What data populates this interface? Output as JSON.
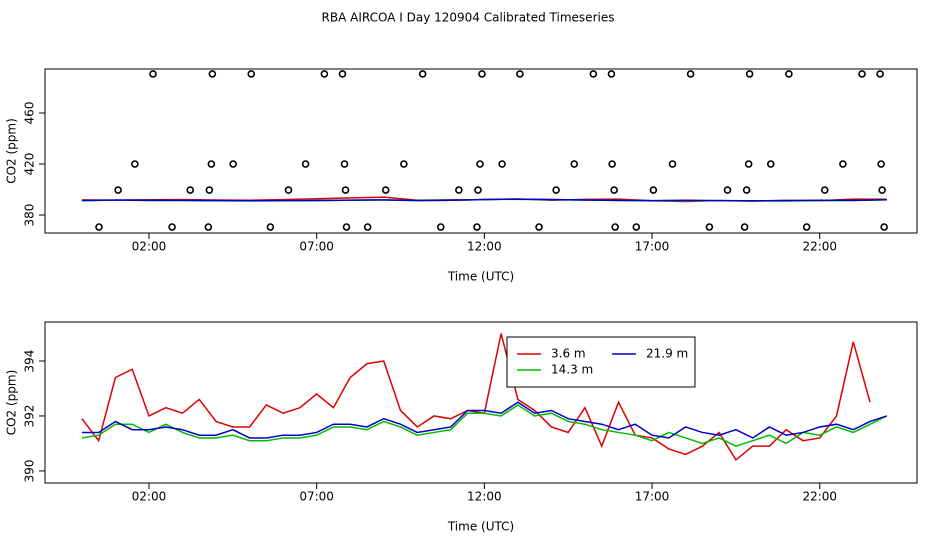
{
  "title": "RBA AIRCOA I  Day 120904  Calibrated Timeseries",
  "chart_data": [
    {
      "type": "scatter",
      "xlabel": "Time (UTC)",
      "ylabel": "CO2 (ppm)",
      "xlim": [
        -1.1,
        24.9
      ],
      "ylim": [
        365.9,
        494.5
      ],
      "xticks": [
        {
          "value": 2,
          "label": "02:00"
        },
        {
          "value": 7,
          "label": "07:00"
        },
        {
          "value": 12,
          "label": "12:00"
        },
        {
          "value": 17,
          "label": "17:00"
        },
        {
          "value": 22,
          "label": "22:00"
        }
      ],
      "yticks": [
        380,
        420,
        460
      ],
      "color": "#000000",
      "x": [
        2.12,
        3.89,
        5.05,
        7.23,
        7.77,
        10.16,
        11.93,
        13.06,
        15.25,
        15.79,
        18.15,
        19.91,
        21.08,
        23.26,
        23.8,
        1.58,
        3.86,
        4.51,
        6.67,
        7.83,
        9.6,
        11.87,
        12.53,
        14.68,
        15.81,
        17.61,
        19.88,
        20.54,
        22.69,
        23.83,
        1.08,
        3.23,
        3.8,
        6.16,
        7.86,
        9.06,
        11.24,
        11.81,
        14.14,
        15.87,
        17.04,
        19.25,
        19.82,
        22.15,
        23.86,
        0.51,
        2.69,
        3.77,
        5.62,
        7.89,
        8.52,
        10.7,
        11.78,
        13.63,
        15.9,
        16.53,
        18.71,
        19.76,
        21.61,
        23.92
      ],
      "values": [
        490.6,
        490.6,
        490.6,
        490.6,
        490.6,
        490.6,
        490.6,
        490.6,
        490.6,
        490.6,
        490.6,
        490.6,
        490.6,
        490.6,
        490.6,
        420,
        420,
        420,
        420,
        420,
        420,
        420,
        420,
        420,
        420,
        420,
        420,
        420,
        420,
        420,
        399.6,
        399.6,
        399.6,
        399.6,
        399.6,
        399.6,
        399.6,
        399.6,
        399.6,
        399.6,
        399.6,
        399.6,
        399.6,
        399.6,
        399.6,
        370.6,
        370.6,
        370.6,
        370.6,
        370.6,
        370.6,
        370.6,
        370.6,
        370.6,
        370.6,
        370.6,
        370.6,
        370.6,
        370.6,
        370.6
      ],
      "series": [
        {
          "color": "#dd0000",
          "x": [
            0,
            1,
            2,
            3,
            4,
            5,
            6,
            7,
            8,
            9,
            10,
            11,
            12,
            13,
            14,
            15,
            16,
            17,
            18,
            19,
            20,
            21,
            22,
            23,
            24
          ],
          "values": [
            391.9,
            391.6,
            392.0,
            392.1,
            391.8,
            391.6,
            392.1,
            392.8,
            393.4,
            394.0,
            391.6,
            391.9,
            392.1,
            392.6,
            391.6,
            392.3,
            392.5,
            391.2,
            390.6,
            391.4,
            390.9,
            391.5,
            391.2,
            392.5,
            392.4
          ]
        },
        {
          "color": "#00bb00",
          "x": [
            0,
            1,
            2,
            3,
            4,
            5,
            6,
            7,
            8,
            9,
            10,
            11,
            12,
            13,
            14,
            15,
            16,
            17,
            18,
            19,
            20,
            21,
            22,
            23,
            24
          ],
          "values": [
            391.2,
            391.7,
            391.4,
            391.4,
            391.2,
            391.1,
            391.2,
            391.3,
            391.6,
            391.8,
            391.3,
            391.5,
            392.1,
            392.4,
            392.1,
            391.7,
            391.4,
            391.1,
            391.2,
            391.2,
            391.1,
            391.0,
            391.3,
            391.4,
            392.0
          ]
        },
        {
          "color": "#0000cc",
          "x": [
            0,
            1,
            2,
            3,
            4,
            5,
            6,
            7,
            8,
            9,
            10,
            11,
            12,
            13,
            14,
            15,
            16,
            17,
            18,
            19,
            20,
            21,
            22,
            23,
            24
          ],
          "values": [
            391.4,
            391.8,
            391.5,
            391.5,
            391.3,
            391.2,
            391.3,
            391.4,
            391.7,
            391.9,
            391.4,
            391.6,
            392.2,
            392.5,
            392.2,
            391.8,
            391.5,
            391.3,
            391.6,
            391.3,
            391.2,
            391.3,
            391.6,
            391.5,
            392.0
          ]
        }
      ]
    },
    {
      "type": "line",
      "xlabel": "Time (UTC)",
      "ylabel": "CO2 (ppm)",
      "xlim": [
        -1.1,
        24.9
      ],
      "ylim": [
        389.56,
        395.42
      ],
      "xticks": [
        {
          "value": 2,
          "label": "02:00"
        },
        {
          "value": 7,
          "label": "07:00"
        },
        {
          "value": 12,
          "label": "12:00"
        },
        {
          "value": 17,
          "label": "17:00"
        },
        {
          "value": 22,
          "label": "22:00"
        }
      ],
      "yticks": [
        390,
        392,
        394
      ],
      "legend": "top",
      "x": [
        0,
        0.5,
        1,
        1.5,
        2,
        2.5,
        3,
        3.5,
        4,
        4.5,
        5,
        5.5,
        6,
        6.5,
        7,
        7.5,
        8,
        8.5,
        9,
        9.5,
        10,
        10.5,
        11,
        11.5,
        12,
        12.5,
        13,
        13.5,
        14,
        14.5,
        15,
        15.5,
        16,
        16.5,
        17,
        17.5,
        18,
        18.5,
        19,
        19.5,
        20,
        20.5,
        21,
        21.5,
        22,
        22.5,
        23,
        23.5,
        24
      ],
      "series": [
        {
          "name": "3.6 m",
          "color": "#dd0000",
          "values": [
            391.9,
            391.1,
            393.4,
            393.7,
            392.0,
            392.3,
            392.1,
            392.6,
            391.8,
            391.6,
            391.6,
            392.4,
            392.1,
            392.3,
            392.8,
            392.3,
            393.4,
            393.9,
            394.0,
            392.2,
            391.6,
            392.0,
            391.9,
            392.2,
            392.1,
            395.0,
            392.6,
            392.2,
            391.6,
            391.4,
            392.3,
            390.9,
            392.5,
            391.3,
            391.2,
            390.8,
            390.6,
            390.9,
            391.4,
            390.4,
            390.9,
            390.9,
            391.5,
            391.1,
            391.2,
            392.0,
            394.7,
            392.5,
            null
          ]
        },
        {
          "name": "14.3 m",
          "color": "#00bb00",
          "values": [
            391.2,
            391.3,
            391.7,
            391.7,
            391.4,
            391.7,
            391.4,
            391.2,
            391.2,
            391.3,
            391.1,
            391.1,
            391.2,
            391.2,
            391.3,
            391.6,
            391.6,
            391.5,
            391.8,
            391.6,
            391.3,
            391.4,
            391.5,
            392.1,
            392.1,
            392.0,
            392.4,
            392.0,
            392.1,
            391.8,
            391.7,
            391.5,
            391.4,
            391.3,
            391.1,
            391.4,
            391.2,
            391.0,
            391.2,
            390.9,
            391.1,
            391.3,
            391.0,
            391.4,
            391.3,
            391.6,
            391.4,
            391.7,
            392.0
          ]
        },
        {
          "name": "21.9 m",
          "color": "#0000cc",
          "values": [
            391.4,
            391.4,
            391.8,
            391.5,
            391.5,
            391.6,
            391.5,
            391.3,
            391.3,
            391.5,
            391.2,
            391.2,
            391.3,
            391.3,
            391.4,
            391.7,
            391.7,
            391.6,
            391.9,
            391.7,
            391.4,
            391.5,
            391.6,
            392.2,
            392.2,
            392.1,
            392.5,
            392.1,
            392.2,
            391.9,
            391.8,
            391.7,
            391.5,
            391.7,
            391.3,
            391.2,
            391.6,
            391.4,
            391.3,
            391.5,
            391.2,
            391.6,
            391.3,
            391.4,
            391.6,
            391.7,
            391.5,
            391.8,
            392.0
          ]
        }
      ]
    }
  ]
}
